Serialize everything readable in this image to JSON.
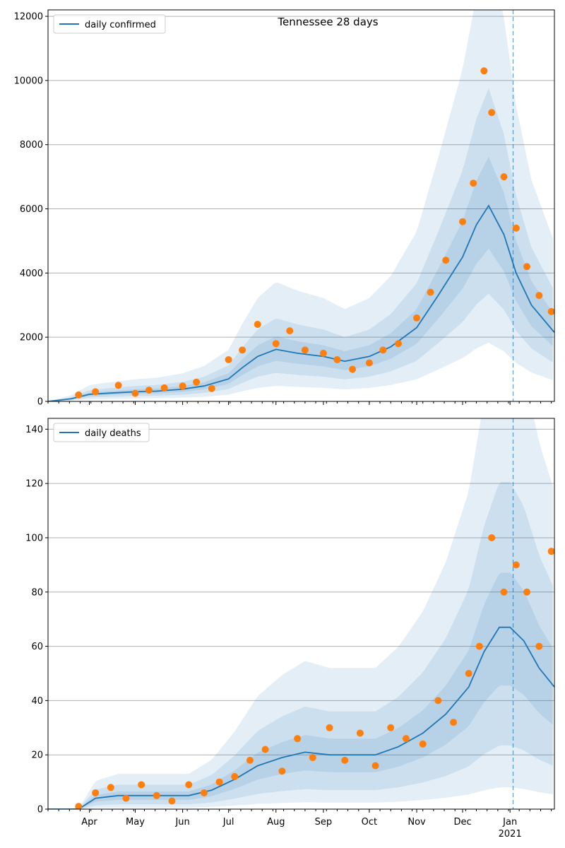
{
  "chart_data": [
    {
      "type": "line",
      "title": "Tennessee 28 days",
      "xlabel": "",
      "ylabel": "",
      "x_range": [
        "2020-03-05",
        "2021-01-30"
      ],
      "ylim": [
        0,
        12200
      ],
      "yticks": [
        0,
        2000,
        4000,
        6000,
        8000,
        10000,
        12000
      ],
      "xtick_labels": [
        "Apr",
        "May",
        "Jun",
        "Jul",
        "Aug",
        "Sep",
        "Oct",
        "Nov",
        "Dec",
        "Jan\n2021"
      ],
      "xtick_dates": [
        "2020-04-01",
        "2020-05-01",
        "2020-06-01",
        "2020-07-01",
        "2020-08-01",
        "2020-09-01",
        "2020-10-01",
        "2020-11-01",
        "2020-12-01",
        "2021-01-01"
      ],
      "grid": "horizontal",
      "legend_position": "top-left",
      "vline_date": "2021-01-03",
      "series": [
        {
          "name": "daily confirmed",
          "color": "#1f77b4",
          "dates": [
            "2020-03-05",
            "2020-03-20",
            "2020-04-01",
            "2020-04-15",
            "2020-05-01",
            "2020-05-15",
            "2020-06-01",
            "2020-06-15",
            "2020-07-01",
            "2020-07-10",
            "2020-07-20",
            "2020-08-01",
            "2020-08-15",
            "2020-09-01",
            "2020-09-15",
            "2020-10-01",
            "2020-10-15",
            "2020-11-01",
            "2020-11-15",
            "2020-12-01",
            "2020-12-10",
            "2020-12-18",
            "2020-12-28",
            "2021-01-05",
            "2021-01-15",
            "2021-01-30"
          ],
          "values": [
            0,
            80,
            220,
            260,
            300,
            320,
            380,
            480,
            700,
            1050,
            1400,
            1620,
            1500,
            1400,
            1250,
            1400,
            1700,
            2300,
            3300,
            4500,
            5500,
            6100,
            5200,
            4000,
            3000,
            2150
          ]
        }
      ],
      "points": {
        "color": "#ff7f0e",
        "dates": [
          "2020-03-25",
          "2020-04-05",
          "2020-04-20",
          "2020-05-01",
          "2020-05-10",
          "2020-05-20",
          "2020-06-01",
          "2020-06-10",
          "2020-06-20",
          "2020-07-01",
          "2020-07-10",
          "2020-07-20",
          "2020-08-01",
          "2020-08-10",
          "2020-08-20",
          "2020-09-01",
          "2020-09-10",
          "2020-09-20",
          "2020-10-01",
          "2020-10-10",
          "2020-10-20",
          "2020-11-01",
          "2020-11-10",
          "2020-11-20",
          "2020-12-01",
          "2020-12-08",
          "2020-12-15",
          "2020-12-20",
          "2020-12-28",
          "2021-01-05",
          "2021-01-12",
          "2021-01-20",
          "2021-01-28"
        ],
        "values": [
          200,
          300,
          500,
          250,
          350,
          420,
          480,
          600,
          400,
          1300,
          1600,
          2400,
          1800,
          2200,
          1600,
          1500,
          1300,
          1000,
          1200,
          1600,
          1800,
          2600,
          3400,
          4400,
          5600,
          6800,
          10300,
          9000,
          7000,
          5400,
          4200,
          3300,
          2800
        ]
      },
      "bands": [
        {
          "lower_factor": 0.3,
          "upper_factor": 2.3
        },
        {
          "lower_factor": 0.55,
          "upper_factor": 1.6
        },
        {
          "lower_factor": 0.78,
          "upper_factor": 1.25
        }
      ]
    },
    {
      "type": "line",
      "title": "",
      "xlabel": "",
      "ylabel": "",
      "x_range": [
        "2020-03-05",
        "2021-01-30"
      ],
      "ylim": [
        0,
        144
      ],
      "yticks": [
        0,
        20,
        40,
        60,
        80,
        100,
        120,
        140
      ],
      "xtick_labels": [
        "Apr",
        "May",
        "Jun",
        "Jul",
        "Aug",
        "Sep",
        "Oct",
        "Nov",
        "Dec",
        "Jan\n2021"
      ],
      "xtick_dates": [
        "2020-04-01",
        "2020-05-01",
        "2020-06-01",
        "2020-07-01",
        "2020-08-01",
        "2020-09-01",
        "2020-10-01",
        "2020-11-01",
        "2020-12-01",
        "2021-01-01"
      ],
      "grid": "horizontal",
      "legend_position": "top-left",
      "vline_date": "2021-01-03",
      "series": [
        {
          "name": "daily deaths",
          "color": "#1f77b4",
          "dates": [
            "2020-03-05",
            "2020-03-25",
            "2020-04-05",
            "2020-04-20",
            "2020-05-05",
            "2020-05-20",
            "2020-06-05",
            "2020-06-20",
            "2020-07-05",
            "2020-07-20",
            "2020-08-05",
            "2020-08-20",
            "2020-09-05",
            "2020-09-20",
            "2020-10-05",
            "2020-10-20",
            "2020-11-05",
            "2020-11-20",
            "2020-12-05",
            "2020-12-15",
            "2020-12-25",
            "2021-01-01",
            "2021-01-10",
            "2021-01-20",
            "2021-01-30"
          ],
          "values": [
            0,
            0,
            4,
            5,
            5,
            5,
            5,
            7,
            11,
            16,
            19,
            21,
            20,
            20,
            20,
            23,
            28,
            35,
            45,
            58,
            67,
            67,
            62,
            52,
            45
          ]
        }
      ],
      "points": {
        "color": "#ff7f0e",
        "dates": [
          "2020-03-25",
          "2020-04-05",
          "2020-04-15",
          "2020-04-25",
          "2020-05-05",
          "2020-05-15",
          "2020-05-25",
          "2020-06-05",
          "2020-06-15",
          "2020-06-25",
          "2020-07-05",
          "2020-07-15",
          "2020-07-25",
          "2020-08-05",
          "2020-08-15",
          "2020-08-25",
          "2020-09-05",
          "2020-09-15",
          "2020-09-25",
          "2020-10-05",
          "2020-10-15",
          "2020-10-25",
          "2020-11-05",
          "2020-11-15",
          "2020-11-25",
          "2020-12-05",
          "2020-12-12",
          "2020-12-20",
          "2020-12-28",
          "2021-01-05",
          "2021-01-12",
          "2021-01-20",
          "2021-01-28"
        ],
        "values": [
          1,
          6,
          8,
          4,
          9,
          5,
          3,
          9,
          6,
          10,
          12,
          18,
          22,
          14,
          26,
          19,
          30,
          18,
          28,
          16,
          30,
          26,
          24,
          40,
          32,
          50,
          60,
          100,
          80,
          90,
          80,
          60,
          95
        ]
      },
      "bands": [
        {
          "lower_factor": 0.12,
          "upper_factor": 2.6
        },
        {
          "lower_factor": 0.35,
          "upper_factor": 1.8
        },
        {
          "lower_factor": 0.68,
          "upper_factor": 1.3
        }
      ]
    }
  ]
}
